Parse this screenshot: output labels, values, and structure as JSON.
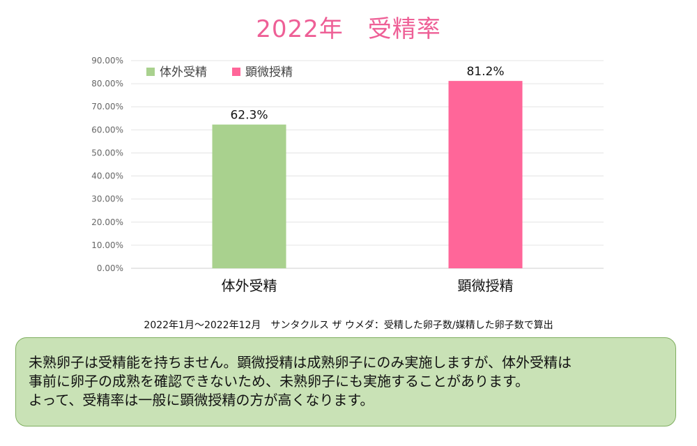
{
  "title": "2022年　受精率",
  "source": "2022年1月〜2022年12月　サンタクルス ザ ウメダ：受精した卵子数/媒精した卵子数で算出",
  "note_lines": [
    "未熟卵子は受精能を持ちません。顕微授精は成熟卵子にのみ実施しますが、体外受精は",
    "事前に卵子の成熟を確認できないため、未熟卵子にも実施することがあります。",
    "よって、受精率は一般に顕微授精の方が高くなります。"
  ],
  "chart_data": {
    "type": "bar",
    "title": "2022年　受精率",
    "categories": [
      "体外受精",
      "顕微授精"
    ],
    "values": [
      62.3,
      81.2
    ],
    "data_labels": [
      "62.3%",
      "81.2%"
    ],
    "colors": [
      "#a9d18e",
      "#ff6699"
    ],
    "ylim": [
      0,
      90
    ],
    "yticks": [
      "0.00%",
      "10.00%",
      "20.00%",
      "30.00%",
      "40.00%",
      "50.00%",
      "60.00%",
      "70.00%",
      "80.00%",
      "90.00%"
    ],
    "legend": [
      "体外受精",
      "顕微授精"
    ],
    "legend_position": "top-left",
    "grid": true,
    "xlabel": "",
    "ylabel": ""
  }
}
